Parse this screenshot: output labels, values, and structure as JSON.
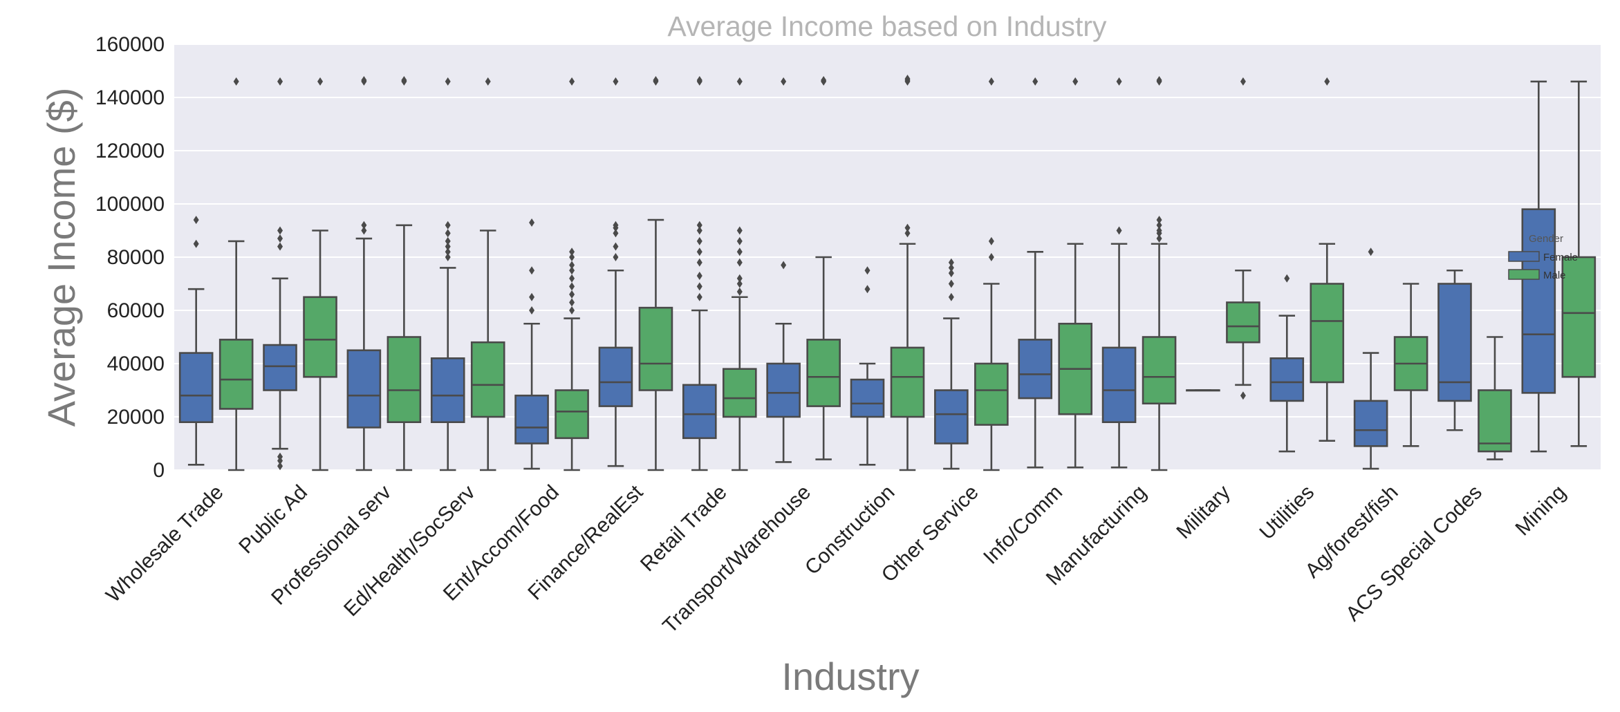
{
  "chart_data": {
    "type": "boxplot",
    "title": "Average Income based on Industry",
    "xlabel": "Industry",
    "ylabel": "Average Income ($)",
    "ylim": [
      0,
      160000
    ],
    "yticks": [
      0,
      20000,
      40000,
      60000,
      80000,
      100000,
      120000,
      140000,
      160000
    ],
    "grid": true,
    "legend": {
      "title": "Gender",
      "placement": "right",
      "entries": [
        "Female",
        "Male"
      ]
    },
    "colors": {
      "Female": "#4c72b0",
      "Male": "#55a868"
    },
    "categories": [
      "Wholesale Trade",
      "Public Ad",
      "Professional serv",
      "Ed/Health/SocServ",
      "Ent/Accom/Food",
      "Finance/RealEst",
      "Retail Trade",
      "Transport/Warehouse",
      "Construction",
      "Other Service",
      "Info/Comm",
      "Manufacturing",
      "Military",
      "Utilities",
      "Ag/forest/fish",
      "ACS Special Codes",
      "Mining"
    ],
    "series": [
      {
        "name": "Female",
        "boxes": [
          {
            "min": 2000,
            "q1": 18000,
            "median": 28000,
            "q3": 44000,
            "max": 68000,
            "fliers": [
              85000,
              94000
            ]
          },
          {
            "min": 8000,
            "q1": 30000,
            "median": 39000,
            "q3": 47000,
            "max": 72000,
            "fliers": [
              1500,
              3500,
              5000,
              84000,
              87000,
              90000,
              146000
            ]
          },
          {
            "min": 0,
            "q1": 16000,
            "median": 28000,
            "q3": 45000,
            "max": 87000,
            "fliers": [
              90000,
              92000,
              146000,
              146500
            ]
          },
          {
            "min": 0,
            "q1": 18000,
            "median": 28000,
            "q3": 42000,
            "max": 76000,
            "fliers": [
              80000,
              82000,
              84000,
              86000,
              89000,
              92000,
              146000
            ]
          },
          {
            "min": 500,
            "q1": 10000,
            "median": 16000,
            "q3": 28000,
            "max": 55000,
            "fliers": [
              60000,
              65000,
              75000,
              93000
            ]
          },
          {
            "min": 1500,
            "q1": 24000,
            "median": 33000,
            "q3": 46000,
            "max": 75000,
            "fliers": [
              80000,
              84000,
              89000,
              91000,
              92000,
              146000
            ]
          },
          {
            "min": 0,
            "q1": 12000,
            "median": 21000,
            "q3": 32000,
            "max": 60000,
            "fliers": [
              65000,
              69000,
              73000,
              78000,
              82000,
              86000,
              90000,
              92000,
              146000,
              146500
            ]
          },
          {
            "min": 3000,
            "q1": 20000,
            "median": 29000,
            "q3": 40000,
            "max": 55000,
            "fliers": [
              77000,
              146000
            ]
          },
          {
            "min": 2000,
            "q1": 20000,
            "median": 25000,
            "q3": 34000,
            "max": 40000,
            "fliers": [
              68000,
              75000
            ]
          },
          {
            "min": 500,
            "q1": 10000,
            "median": 21000,
            "q3": 30000,
            "max": 57000,
            "fliers": [
              65000,
              70000,
              74000,
              76000,
              78000
            ]
          },
          {
            "min": 1000,
            "q1": 27000,
            "median": 36000,
            "q3": 49000,
            "max": 82000,
            "fliers": [
              146000
            ]
          },
          {
            "min": 1000,
            "q1": 18000,
            "median": 30000,
            "q3": 46000,
            "max": 85000,
            "fliers": [
              90000,
              146000
            ]
          },
          {
            "min": 30000,
            "q1": 30000,
            "median": 30000,
            "q3": 30000,
            "max": 30000,
            "fliers": []
          },
          {
            "min": 7000,
            "q1": 26000,
            "median": 33000,
            "q3": 42000,
            "max": 58000,
            "fliers": [
              72000
            ]
          },
          {
            "min": 500,
            "q1": 9000,
            "median": 15000,
            "q3": 26000,
            "max": 44000,
            "fliers": [
              82000
            ]
          },
          {
            "min": 15000,
            "q1": 26000,
            "median": 33000,
            "q3": 70000,
            "max": 75000,
            "fliers": []
          },
          {
            "min": 7000,
            "q1": 29000,
            "median": 51000,
            "q3": 98000,
            "max": 146000,
            "fliers": []
          }
        ]
      },
      {
        "name": "Male",
        "boxes": [
          {
            "min": 0,
            "q1": 23000,
            "median": 34000,
            "q3": 49000,
            "max": 86000,
            "fliers": [
              146000
            ]
          },
          {
            "min": 0,
            "q1": 35000,
            "median": 49000,
            "q3": 65000,
            "max": 90000,
            "fliers": [
              146000
            ]
          },
          {
            "min": 0,
            "q1": 18000,
            "median": 30000,
            "q3": 50000,
            "max": 92000,
            "fliers": [
              146000,
              146500
            ]
          },
          {
            "min": 0,
            "q1": 20000,
            "median": 32000,
            "q3": 48000,
            "max": 90000,
            "fliers": [
              146000
            ]
          },
          {
            "min": 0,
            "q1": 12000,
            "median": 22000,
            "q3": 30000,
            "max": 57000,
            "fliers": [
              60000,
              63000,
              66000,
              69000,
              72000,
              75000,
              77000,
              80000,
              82000,
              146000
            ]
          },
          {
            "min": 0,
            "q1": 30000,
            "median": 40000,
            "q3": 61000,
            "max": 94000,
            "fliers": [
              146000,
              146500
            ]
          },
          {
            "min": 0,
            "q1": 20000,
            "median": 27000,
            "q3": 38000,
            "max": 65000,
            "fliers": [
              67000,
              70000,
              72000,
              78000,
              82000,
              86000,
              90000,
              146000
            ]
          },
          {
            "min": 4000,
            "q1": 24000,
            "median": 35000,
            "q3": 49000,
            "max": 80000,
            "fliers": [
              146000,
              146500
            ]
          },
          {
            "min": 0,
            "q1": 20000,
            "median": 35000,
            "q3": 46000,
            "max": 85000,
            "fliers": [
              89000,
              91000,
              146000,
              146500,
              147000
            ]
          },
          {
            "min": 0,
            "q1": 17000,
            "median": 30000,
            "q3": 40000,
            "max": 70000,
            "fliers": [
              80000,
              86000,
              146000
            ]
          },
          {
            "min": 1000,
            "q1": 21000,
            "median": 38000,
            "q3": 55000,
            "max": 85000,
            "fliers": [
              146000
            ]
          },
          {
            "min": 0,
            "q1": 25000,
            "median": 35000,
            "q3": 50000,
            "max": 85000,
            "fliers": [
              87000,
              89000,
              90000,
              92000,
              94000,
              146000,
              146500
            ]
          },
          {
            "min": 32000,
            "q1": 48000,
            "median": 54000,
            "q3": 63000,
            "max": 75000,
            "fliers": [
              28000,
              146000
            ]
          },
          {
            "min": 11000,
            "q1": 33000,
            "median": 56000,
            "q3": 70000,
            "max": 85000,
            "fliers": [
              146000
            ]
          },
          {
            "min": 9000,
            "q1": 30000,
            "median": 40000,
            "q3": 50000,
            "max": 70000,
            "fliers": []
          },
          {
            "min": 4000,
            "q1": 7000,
            "median": 10000,
            "q3": 30000,
            "max": 50000,
            "fliers": []
          },
          {
            "min": 9000,
            "q1": 35000,
            "median": 59000,
            "q3": 80000,
            "max": 146000,
            "fliers": []
          }
        ]
      }
    ]
  }
}
